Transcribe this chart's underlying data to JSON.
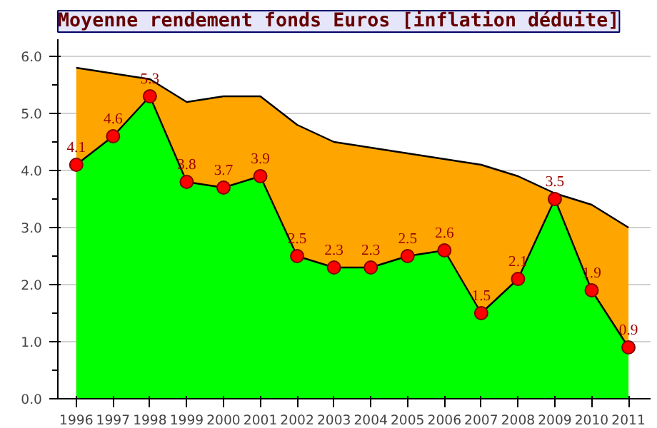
{
  "chart_data": {
    "type": "area",
    "title": "Moyenne rendement fonds Euros [inflation déduite]",
    "categories": [
      "1996",
      "1997",
      "1998",
      "1999",
      "2000",
      "2001",
      "2002",
      "2003",
      "2004",
      "2005",
      "2006",
      "2007",
      "2008",
      "2009",
      "2010",
      "2011"
    ],
    "series": [
      {
        "color": "#ffa500",
        "marker": "none",
        "values": [
          5.8,
          5.7,
          5.6,
          5.2,
          5.3,
          5.3,
          4.8,
          4.5,
          4.4,
          4.3,
          4.2,
          4.1,
          3.9,
          3.6,
          3.4,
          3.0
        ]
      },
      {
        "color": "#00ff00",
        "marker": "circle",
        "values": [
          4.1,
          4.6,
          5.3,
          3.8,
          3.7,
          3.9,
          2.5,
          2.3,
          2.3,
          2.5,
          2.6,
          1.5,
          2.1,
          3.5,
          1.9,
          0.9
        ],
        "value_labels": [
          "4.1",
          "4.6",
          "5.3",
          "3.8",
          "3.7",
          "3.9",
          "2.5",
          "2.3",
          "2.3",
          "2.5",
          "2.6",
          "1.5",
          "2.1",
          "3.5",
          "1.9",
          "0.9"
        ]
      }
    ],
    "ylim": [
      0,
      6.3
    ],
    "yticks": [
      "0.0",
      "1.0",
      "2.0",
      "3.0",
      "4.0",
      "5.0",
      "6.0"
    ],
    "grid": "y"
  }
}
